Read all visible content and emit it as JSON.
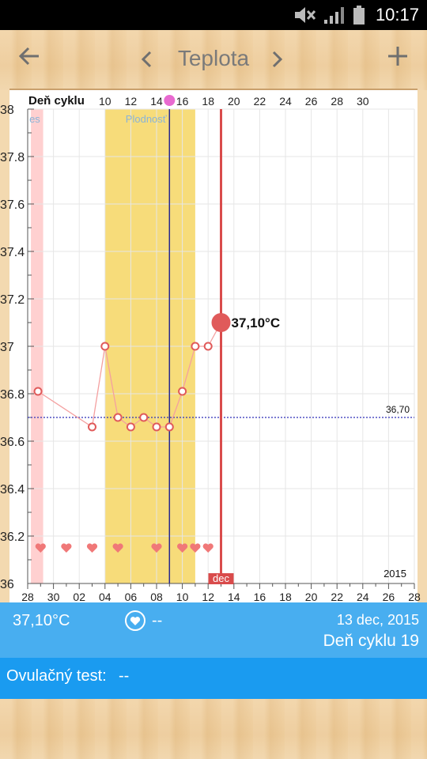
{
  "status_bar": {
    "time": "10:17"
  },
  "app_bar": {
    "title": "Teplota"
  },
  "chart_data": {
    "type": "line",
    "title": "",
    "top_label": "Deň cyklu",
    "cycle_ticks": [
      "10",
      "12",
      "14",
      "16",
      "18",
      "20",
      "22",
      "24",
      "26",
      "28",
      "30"
    ],
    "date_ticks": [
      "28",
      "30",
      "02",
      "04",
      "06",
      "08",
      "10",
      "12",
      "14",
      "16",
      "18",
      "20",
      "22",
      "24",
      "26",
      "28"
    ],
    "y_ticks": [
      "38",
      "37.8",
      "37.6",
      "37.4",
      "37.2",
      "37",
      "36.8",
      "36.6",
      "36.4",
      "36.2",
      "36"
    ],
    "ylim": [
      36,
      38
    ],
    "grid": true,
    "x_unit": "days since 28 nov 2015",
    "series": [
      {
        "points": [
          {
            "x": 0.8,
            "y": 36.81
          },
          {
            "x": 5,
            "y": 36.66
          },
          {
            "x": 6,
            "y": 37.0
          },
          {
            "x": 7,
            "y": 36.7
          },
          {
            "x": 8,
            "y": 36.66
          },
          {
            "x": 9,
            "y": 36.7
          },
          {
            "x": 10,
            "y": 36.66
          },
          {
            "x": 11,
            "y": 36.66
          },
          {
            "x": 12,
            "y": 36.81
          },
          {
            "x": 13,
            "y": 37.0
          },
          {
            "x": 14,
            "y": 37.0
          },
          {
            "x": 15,
            "y": 37.1
          }
        ]
      }
    ],
    "coverline": {
      "value": 36.7,
      "label": "36,70"
    },
    "current": {
      "x": 15,
      "y": 37.1,
      "label": "37,10°C",
      "month_label": "dec"
    },
    "fertile_window": {
      "from": 6,
      "to": 13,
      "label": "Plodnosť"
    },
    "period_band": {
      "from": 0.25,
      "to": 1.2,
      "label": "es"
    },
    "ovulation_x": 11,
    "intercourse_x": [
      1,
      3,
      5,
      7,
      10,
      12,
      13,
      14
    ],
    "year_label": "2015",
    "colors": {
      "line": "#f4a0a0",
      "marker": "#e05a5a",
      "fertile": "#f7dc7a",
      "period": "#ffd0d0",
      "coverline": "#2f2fb8",
      "ovulation": "#28288f",
      "current": "#d94b4b",
      "heart": "#f07878"
    }
  },
  "info": {
    "temperature": "37,10°C",
    "sex_value": "--",
    "date": "13 dec, 2015",
    "cycle_day": "Deň cyklu 19"
  },
  "ovulation_test": {
    "label": "Ovulačný test:",
    "value": "--"
  },
  "icons": {
    "back": "arrow-left-icon",
    "prev": "chevron-left-icon",
    "next": "chevron-right-icon",
    "add": "plus-icon",
    "mute": "mute-icon",
    "signal": "signal-icon",
    "battery": "battery-icon",
    "heart": "heart-icon"
  }
}
